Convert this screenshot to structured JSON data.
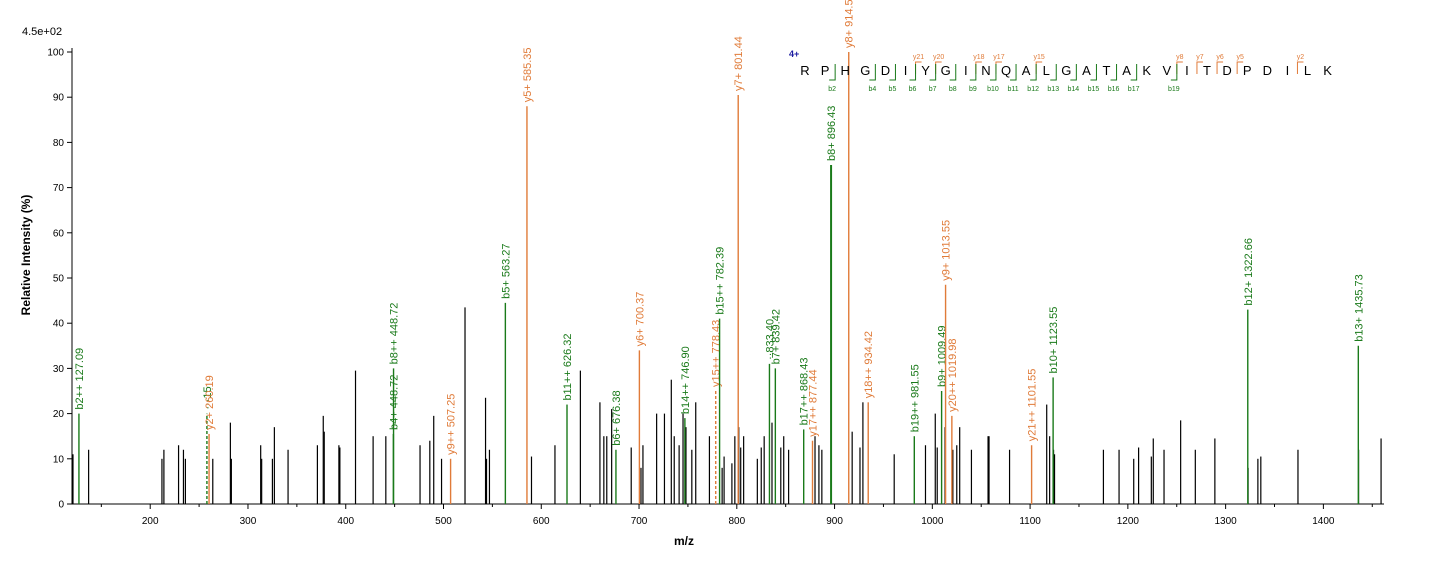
{
  "chart_data": {
    "type": "bar",
    "title": "",
    "xlabel": "m/z",
    "ylabel": "Relative Intensity (%)",
    "scale_label": "4.5e+02",
    "xlim": [
      120,
      1462
    ],
    "ylim": [
      0,
      100
    ],
    "x_ticks": [
      200,
      300,
      400,
      500,
      600,
      700,
      800,
      900,
      1000,
      1100,
      1200,
      1300,
      1400
    ],
    "y_ticks": [
      0,
      10,
      20,
      30,
      40,
      50,
      60,
      70,
      80,
      90,
      100
    ],
    "colors": {
      "unannotated": "#000000",
      "b_ion": "#1a7a1a",
      "y_ion": "#e07b39",
      "charge": "#1a1aa0"
    },
    "peaks": [
      {
        "mz": 121,
        "intensity": 11
      },
      {
        "mz": 137,
        "intensity": 12
      },
      {
        "mz": 212,
        "intensity": 10
      },
      {
        "mz": 214,
        "intensity": 12
      },
      {
        "mz": 229,
        "intensity": 13
      },
      {
        "mz": 234,
        "intensity": 12
      },
      {
        "mz": 236,
        "intensity": 10
      },
      {
        "mz": 264,
        "intensity": 10
      },
      {
        "mz": 282,
        "intensity": 18
      },
      {
        "mz": 283,
        "intensity": 10
      },
      {
        "mz": 313,
        "intensity": 13
      },
      {
        "mz": 314,
        "intensity": 10
      },
      {
        "mz": 325,
        "intensity": 10
      },
      {
        "mz": 327,
        "intensity": 17
      },
      {
        "mz": 341,
        "intensity": 12
      },
      {
        "mz": 371,
        "intensity": 13
      },
      {
        "mz": 377,
        "intensity": 19.5
      },
      {
        "mz": 378,
        "intensity": 16
      },
      {
        "mz": 393,
        "intensity": 13
      },
      {
        "mz": 394,
        "intensity": 12.5
      },
      {
        "mz": 410,
        "intensity": 29.5
      },
      {
        "mz": 428,
        "intensity": 15
      },
      {
        "mz": 441,
        "intensity": 15
      },
      {
        "mz": 476,
        "intensity": 13
      },
      {
        "mz": 486,
        "intensity": 14
      },
      {
        "mz": 490,
        "intensity": 19.5
      },
      {
        "mz": 498,
        "intensity": 10
      },
      {
        "mz": 522,
        "intensity": 43.5
      },
      {
        "mz": 543,
        "intensity": 23.5
      },
      {
        "mz": 544,
        "intensity": 10
      },
      {
        "mz": 547,
        "intensity": 12
      },
      {
        "mz": 590,
        "intensity": 10.5
      },
      {
        "mz": 614,
        "intensity": 13
      },
      {
        "mz": 640,
        "intensity": 29.5
      },
      {
        "mz": 660,
        "intensity": 22.5
      },
      {
        "mz": 664,
        "intensity": 15
      },
      {
        "mz": 667,
        "intensity": 15
      },
      {
        "mz": 672,
        "intensity": 21
      },
      {
        "mz": 692,
        "intensity": 12.5
      },
      {
        "mz": 702,
        "intensity": 8
      },
      {
        "mz": 704,
        "intensity": 13
      },
      {
        "mz": 718,
        "intensity": 20
      },
      {
        "mz": 726,
        "intensity": 20
      },
      {
        "mz": 733,
        "intensity": 27.5
      },
      {
        "mz": 736,
        "intensity": 15
      },
      {
        "mz": 741,
        "intensity": 13
      },
      {
        "mz": 745,
        "intensity": 20
      },
      {
        "mz": 748,
        "intensity": 17
      },
      {
        "mz": 754,
        "intensity": 12
      },
      {
        "mz": 758,
        "intensity": 22.5
      },
      {
        "mz": 772,
        "intensity": 15
      },
      {
        "mz": 785,
        "intensity": 8
      },
      {
        "mz": 787,
        "intensity": 10.5
      },
      {
        "mz": 795,
        "intensity": 9
      },
      {
        "mz": 798,
        "intensity": 15
      },
      {
        "mz": 802,
        "intensity": 17
      },
      {
        "mz": 804,
        "intensity": 12.5
      },
      {
        "mz": 807,
        "intensity": 15
      },
      {
        "mz": 821,
        "intensity": 10
      },
      {
        "mz": 825,
        "intensity": 12.5
      },
      {
        "mz": 828,
        "intensity": 15
      },
      {
        "mz": 836,
        "intensity": 18
      },
      {
        "mz": 845,
        "intensity": 12.5
      },
      {
        "mz": 848,
        "intensity": 15
      },
      {
        "mz": 853,
        "intensity": 12
      },
      {
        "mz": 880,
        "intensity": 15
      },
      {
        "mz": 884,
        "intensity": 13
      },
      {
        "mz": 887,
        "intensity": 12
      },
      {
        "mz": 918,
        "intensity": 16
      },
      {
        "mz": 926,
        "intensity": 12.5
      },
      {
        "mz": 929,
        "intensity": 22.5
      },
      {
        "mz": 961,
        "intensity": 11
      },
      {
        "mz": 993,
        "intensity": 13
      },
      {
        "mz": 1003,
        "intensity": 20
      },
      {
        "mz": 1005,
        "intensity": 12.5
      },
      {
        "mz": 1013,
        "intensity": 17
      },
      {
        "mz": 1021,
        "intensity": 12
      },
      {
        "mz": 1025,
        "intensity": 13
      },
      {
        "mz": 1028,
        "intensity": 17
      },
      {
        "mz": 1040,
        "intensity": 12
      },
      {
        "mz": 1057,
        "intensity": 15
      },
      {
        "mz": 1058,
        "intensity": 15
      },
      {
        "mz": 1079,
        "intensity": 12
      },
      {
        "mz": 1117,
        "intensity": 22
      },
      {
        "mz": 1120,
        "intensity": 15
      },
      {
        "mz": 1124,
        "intensity": 12
      },
      {
        "mz": 1125,
        "intensity": 11
      },
      {
        "mz": 1175,
        "intensity": 12
      },
      {
        "mz": 1191,
        "intensity": 12
      },
      {
        "mz": 1206,
        "intensity": 10
      },
      {
        "mz": 1211,
        "intensity": 12.5
      },
      {
        "mz": 1224,
        "intensity": 10.5
      },
      {
        "mz": 1226,
        "intensity": 14.5
      },
      {
        "mz": 1237,
        "intensity": 12
      },
      {
        "mz": 1254,
        "intensity": 18.5
      },
      {
        "mz": 1269,
        "intensity": 12
      },
      {
        "mz": 1289,
        "intensity": 14.5
      },
      {
        "mz": 1323,
        "intensity": 8
      },
      {
        "mz": 1333,
        "intensity": 10
      },
      {
        "mz": 1336,
        "intensity": 10.5
      },
      {
        "mz": 1374,
        "intensity": 12
      },
      {
        "mz": 1436,
        "intensity": 12
      },
      {
        "mz": 1459,
        "intensity": 14.5
      }
    ],
    "annotated_peaks": [
      {
        "mz": 127.09,
        "intensity": 20,
        "ion": "b",
        "label": "b2++ 127.09"
      },
      {
        "mz": 258,
        "intensity": 20,
        "ion": "b",
        "dashed": true,
        "label": "···15"
      },
      {
        "mz": 260.19,
        "intensity": 15.5,
        "ion": "y",
        "label": "y2+ 260.19"
      },
      {
        "mz": 448.72,
        "intensity": 15.5,
        "ion": "b",
        "label": "b4+ 448.72"
      },
      {
        "mz": 448.9,
        "intensity": 30,
        "ion": "b",
        "label": "b8++ 448.72"
      },
      {
        "mz": 507.25,
        "intensity": 10,
        "ion": "y",
        "label": "y9++ 507.25"
      },
      {
        "mz": 563.27,
        "intensity": 44.5,
        "ion": "b",
        "label": "b5+ 563.27"
      },
      {
        "mz": 585.35,
        "intensity": 88,
        "ion": "y",
        "label": "y5+ 585.35"
      },
      {
        "mz": 626.32,
        "intensity": 22,
        "ion": "b",
        "label": "b11++ 626.32"
      },
      {
        "mz": 676.38,
        "intensity": 12,
        "ion": "b",
        "label": "b6+ 676.38"
      },
      {
        "mz": 700.37,
        "intensity": 34,
        "ion": "y",
        "label": "y6+ 700.37"
      },
      {
        "mz": 746.9,
        "intensity": 19,
        "ion": "b",
        "label": "b14++ 746.90"
      },
      {
        "mz": 778.43,
        "intensity": 25,
        "ion": "y",
        "dashed": true,
        "label": "y15++ 778.43"
      },
      {
        "mz": 782.39,
        "intensity": 41,
        "ion": "b",
        "label": "b15++ 782.39"
      },
      {
        "mz": 801.44,
        "intensity": 90.5,
        "ion": "y",
        "label": "y7+ 801.44"
      },
      {
        "mz": 833.4,
        "intensity": 31,
        "ion": "b",
        "label": "··833.40"
      },
      {
        "mz": 839.42,
        "intensity": 30,
        "ion": "b",
        "label": "b7+ 839.42"
      },
      {
        "mz": 868.43,
        "intensity": 16.5,
        "ion": "b",
        "label": "b17++ 868.43"
      },
      {
        "mz": 877.44,
        "intensity": 14,
        "ion": "y",
        "label": "y17++ 877.44"
      },
      {
        "mz": 896.43,
        "intensity": 75,
        "ion": "b",
        "label": "b8+ 896.43"
      },
      {
        "mz": 914.51,
        "intensity": 100,
        "ion": "y",
        "label": "y8+ 914.51"
      },
      {
        "mz": 934.42,
        "intensity": 22.5,
        "ion": "y",
        "label": "y18++ 934.42"
      },
      {
        "mz": 981.55,
        "intensity": 15,
        "ion": "b",
        "label": "b19++ 981.55"
      },
      {
        "mz": 1009.49,
        "intensity": 25,
        "ion": "b",
        "label": "b9+ 1009.49"
      },
      {
        "mz": 1013.55,
        "intensity": 48.5,
        "ion": "y",
        "label": "y9+ 1013.55"
      },
      {
        "mz": 1019.98,
        "intensity": 19.5,
        "ion": "y",
        "label": "y20++ 1019.98"
      },
      {
        "mz": 1101.55,
        "intensity": 13,
        "ion": "y",
        "label": "y21++ 1101.55"
      },
      {
        "mz": 1123.55,
        "intensity": 28,
        "ion": "b",
        "label": "b10+ 1123.55"
      },
      {
        "mz": 1322.66,
        "intensity": 43,
        "ion": "b",
        "label": "b12+ 1322.66"
      },
      {
        "mz": 1435.73,
        "intensity": 35,
        "ion": "b",
        "label": "b13+ 1435.73"
      }
    ],
    "sequence": {
      "charge": "4+",
      "residues": [
        "R",
        "P",
        "H",
        "G",
        "D",
        "I",
        "Y",
        "G",
        "I",
        "N",
        "Q",
        "A",
        "L",
        "G",
        "A",
        "T",
        "A",
        "K",
        "V",
        "I",
        "T",
        "D",
        "P",
        "D",
        "I",
        "L",
        "K"
      ],
      "y_ions": [
        {
          "after": 6,
          "label": "y21"
        },
        {
          "after": 7,
          "label": "y20"
        },
        {
          "after": 9,
          "label": "y18"
        },
        {
          "after": 10,
          "label": "y17"
        },
        {
          "after": 12,
          "label": "y15"
        },
        {
          "after": 19,
          "label": "y8"
        },
        {
          "after": 20,
          "label": "y7"
        },
        {
          "after": 21,
          "label": "y6"
        },
        {
          "after": 22,
          "label": "y5"
        },
        {
          "after": 25,
          "label": "y2"
        }
      ],
      "b_ions": [
        {
          "after": 2,
          "label": "b2"
        },
        {
          "after": 4,
          "label": "b4"
        },
        {
          "after": 5,
          "label": "b5"
        },
        {
          "after": 6,
          "label": "b6"
        },
        {
          "after": 7,
          "label": "b7"
        },
        {
          "after": 8,
          "label": "b8"
        },
        {
          "after": 9,
          "label": "b9"
        },
        {
          "after": 10,
          "label": "b10"
        },
        {
          "after": 11,
          "label": "b11"
        },
        {
          "after": 12,
          "label": "b12"
        },
        {
          "after": 13,
          "label": "b13"
        },
        {
          "after": 14,
          "label": "b14"
        },
        {
          "after": 15,
          "label": "b15"
        },
        {
          "after": 16,
          "label": "b16"
        },
        {
          "after": 17,
          "label": "b17"
        },
        {
          "after": 19,
          "label": "b19"
        }
      ]
    }
  }
}
